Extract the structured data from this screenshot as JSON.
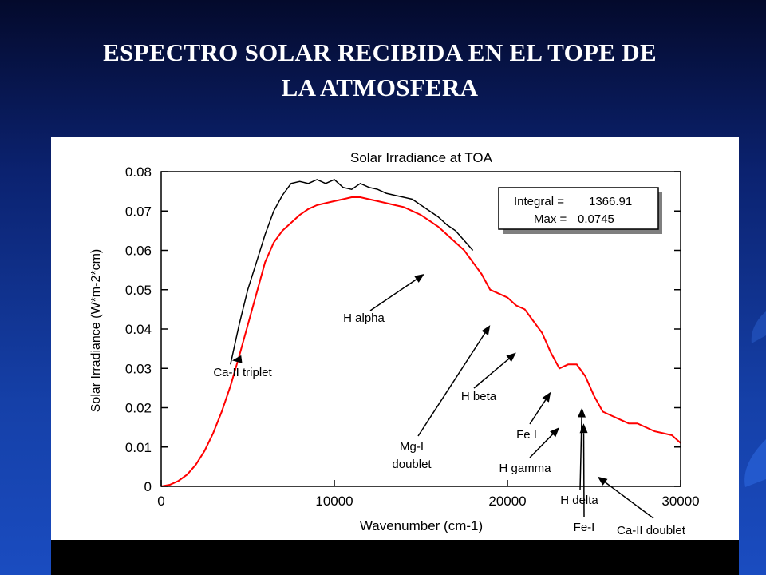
{
  "slide": {
    "title_line1": "ESPECTRO SOLAR RECIBIDA EN EL TOPE DE",
    "title_line2": "LA ATMOSFERA"
  },
  "colors": {
    "measured": "#ff0000",
    "reference": "#000000",
    "background_top": "#040a2c",
    "background_bottom": "#1a4cc0"
  },
  "chart_data": {
    "type": "line",
    "title": "Solar Irradiance at TOA",
    "xlabel": "Wavenumber (cm-1)",
    "ylabel": "Solar Irradiance (W*m-2*cm)",
    "xlim": [
      0,
      30000
    ],
    "ylim": [
      0,
      0.08
    ],
    "x_ticks": [
      "0",
      "10000",
      "20000",
      "30000"
    ],
    "y_ticks": [
      "0",
      "0.01",
      "0.02",
      "0.03",
      "0.04",
      "0.05",
      "0.06",
      "0.07",
      "0.08"
    ],
    "grid": false,
    "stats_box": {
      "integral_label": "Integral =",
      "integral_value": "1366.91",
      "max_label": "Max =",
      "max_value": "0.0745"
    },
    "series": [
      {
        "color": "black",
        "x": [
          4000,
          4500,
          5000,
          5500,
          6000,
          6500,
          7000,
          7500,
          8000,
          8500,
          9000,
          9500,
          10000,
          10500,
          11000,
          11500,
          12000,
          12500,
          13000,
          13500,
          14000,
          14500,
          15000,
          15500,
          16000,
          16500,
          17000,
          17500,
          18000
        ],
        "y": [
          0.031,
          0.041,
          0.05,
          0.057,
          0.064,
          0.07,
          0.074,
          0.077,
          0.0775,
          0.077,
          0.078,
          0.077,
          0.078,
          0.076,
          0.0755,
          0.077,
          0.076,
          0.0755,
          0.0745,
          0.074,
          0.0735,
          0.073,
          0.0715,
          0.07,
          0.0685,
          0.0665,
          0.065,
          0.0625,
          0.06
        ]
      },
      {
        "color": "red",
        "x": [
          0,
          500,
          1000,
          1500,
          2000,
          2500,
          3000,
          3500,
          4000,
          4500,
          5000,
          5500,
          6000,
          6500,
          7000,
          7500,
          8000,
          8500,
          9000,
          9500,
          10000,
          10500,
          11000,
          11500,
          12000,
          12500,
          13000,
          13500,
          14000,
          14500,
          15000,
          15500,
          16000,
          16500,
          17000,
          17500,
          18000,
          18500,
          19000,
          19500,
          20000,
          20500,
          21000,
          21500,
          22000,
          22500,
          23000,
          23500,
          24000,
          24500,
          25000,
          25500,
          26000,
          26500,
          27000,
          27500,
          28000,
          28500,
          29000,
          29500,
          30000
        ],
        "y": [
          0.0,
          0.0004,
          0.0014,
          0.003,
          0.0055,
          0.009,
          0.0135,
          0.019,
          0.0255,
          0.033,
          0.041,
          0.049,
          0.057,
          0.062,
          0.065,
          0.067,
          0.069,
          0.0705,
          0.0715,
          0.072,
          0.0725,
          0.073,
          0.0735,
          0.0735,
          0.073,
          0.0725,
          0.072,
          0.0715,
          0.071,
          0.07,
          0.069,
          0.0675,
          0.066,
          0.064,
          0.062,
          0.06,
          0.057,
          0.054,
          0.05,
          0.049,
          0.048,
          0.046,
          0.045,
          0.042,
          0.039,
          0.034,
          0.03,
          0.031,
          0.031,
          0.028,
          0.023,
          0.019,
          0.018,
          0.017,
          0.016,
          0.016,
          0.015,
          0.014,
          0.0135,
          0.013,
          0.011
        ]
      }
    ],
    "annotations": [
      {
        "text": "Ca-II triplet",
        "x": 4100,
        "y": 0.032
      },
      {
        "text": "H alpha",
        "x": 15200,
        "y": 0.054
      },
      {
        "text": "Mg-I doublet",
        "x": 19000,
        "y": 0.041
      },
      {
        "text": "H beta",
        "x": 20500,
        "y": 0.034
      },
      {
        "text": "Fe I",
        "x": 22500,
        "y": 0.024
      },
      {
        "text": "H gamma",
        "x": 23000,
        "y": 0.015
      },
      {
        "text": "H delta",
        "x": 24300,
        "y": 0.02
      },
      {
        "text": "Fe-I",
        "x": 24400,
        "y": 0.016
      },
      {
        "text": "Ca-II doublet",
        "x": 25200,
        "y": 0.0025
      }
    ]
  }
}
